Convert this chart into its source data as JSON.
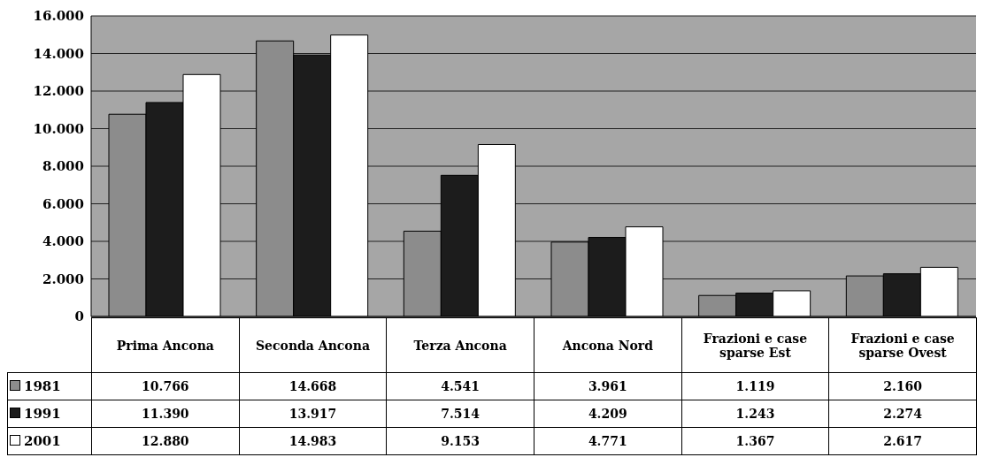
{
  "chart_data": {
    "type": "bar",
    "categories": [
      "Prima Ancona",
      "Seconda Ancona",
      "Terza Ancona",
      "Ancona Nord",
      "Frazioni e case sparse Est",
      "Frazioni e case sparse Ovest"
    ],
    "series": [
      {
        "name": "1981",
        "color": "#8c8c8c",
        "values": [
          10766,
          14668,
          4541,
          3961,
          1119,
          2160
        ],
        "value_labels": [
          "10.766",
          "14.668",
          "4.541",
          "3.961",
          "1.119",
          "2.160"
        ]
      },
      {
        "name": "1991",
        "color": "#1c1c1c",
        "values": [
          11390,
          13917,
          7514,
          4209,
          1243,
          2274
        ],
        "value_labels": [
          "11.390",
          "13.917",
          "7.514",
          "4.209",
          "1.243",
          "2.274"
        ]
      },
      {
        "name": "2001",
        "color": "#ffffff",
        "values": [
          12880,
          14983,
          9153,
          4771,
          1367,
          2617
        ],
        "value_labels": [
          "12.880",
          "14.983",
          "9.153",
          "4.771",
          "1.367",
          "2.617"
        ]
      }
    ],
    "ylim": [
      0,
      16000
    ],
    "yticks": [
      {
        "value": 0,
        "label": "0"
      },
      {
        "value": 2000,
        "label": "2.000"
      },
      {
        "value": 4000,
        "label": "4.000"
      },
      {
        "value": 6000,
        "label": "6.000"
      },
      {
        "value": 8000,
        "label": "8.000"
      },
      {
        "value": 10000,
        "label": "10.000"
      },
      {
        "value": 12000,
        "label": "12.000"
      },
      {
        "value": 14000,
        "label": "14.000"
      },
      {
        "value": 16000,
        "label": "16.000"
      }
    ],
    "grid": "y",
    "legend": "bottom left",
    "data_labels": true
  }
}
